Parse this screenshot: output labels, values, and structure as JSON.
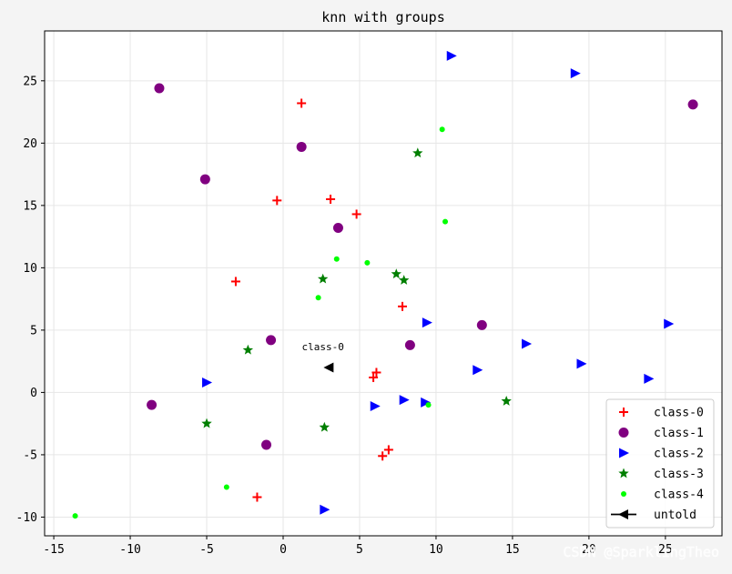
{
  "chart_data": {
    "type": "scatter",
    "title": "knn with groups",
    "xlabel": "",
    "ylabel": "",
    "xlim": [
      -15.6,
      28.7
    ],
    "ylim": [
      -11.5,
      29.0
    ],
    "xticks": [
      -15,
      -10,
      -5,
      0,
      5,
      10,
      15,
      20,
      25
    ],
    "yticks": [
      -10,
      -5,
      0,
      5,
      10,
      15,
      20,
      25
    ],
    "grid": true,
    "legend_position": "lower right",
    "series": [
      {
        "name": "class-0",
        "marker": "plus",
        "color": "#ff0000",
        "points": [
          [
            1.2,
            23.2
          ],
          [
            -0.4,
            15.4
          ],
          [
            3.1,
            15.5
          ],
          [
            4.8,
            14.3
          ],
          [
            -3.1,
            8.9
          ],
          [
            7.8,
            6.9
          ],
          [
            5.9,
            1.2
          ],
          [
            6.1,
            1.6
          ],
          [
            6.5,
            -5.1
          ],
          [
            6.9,
            -4.6
          ],
          [
            -1.7,
            -8.4
          ]
        ]
      },
      {
        "name": "class-1",
        "marker": "circle",
        "color": "#800080",
        "points": [
          [
            -8.1,
            24.4
          ],
          [
            1.2,
            19.7
          ],
          [
            -5.1,
            17.1
          ],
          [
            3.6,
            13.2
          ],
          [
            -0.8,
            4.2
          ],
          [
            8.3,
            3.8
          ],
          [
            13.0,
            5.4
          ],
          [
            26.8,
            23.1
          ],
          [
            -8.6,
            -1.0
          ],
          [
            -1.1,
            -4.2
          ]
        ]
      },
      {
        "name": "class-2",
        "marker": "triangle-right",
        "color": "#0000ff",
        "points": [
          [
            11.0,
            27.0
          ],
          [
            19.1,
            25.6
          ],
          [
            9.4,
            5.6
          ],
          [
            15.9,
            3.9
          ],
          [
            25.2,
            5.5
          ],
          [
            19.5,
            2.3
          ],
          [
            23.9,
            1.1
          ],
          [
            12.7,
            1.8
          ],
          [
            -5.0,
            0.8
          ],
          [
            6.0,
            -1.1
          ],
          [
            7.9,
            -0.6
          ],
          [
            9.3,
            -0.8
          ],
          [
            2.7,
            -9.4
          ]
        ]
      },
      {
        "name": "class-3",
        "marker": "star",
        "color": "#007f00",
        "points": [
          [
            8.8,
            19.2
          ],
          [
            2.6,
            9.1
          ],
          [
            7.4,
            9.5
          ],
          [
            7.9,
            9.0
          ],
          [
            -2.3,
            3.4
          ],
          [
            14.6,
            -0.7
          ],
          [
            -5.0,
            -2.5
          ],
          [
            2.7,
            -2.8
          ]
        ]
      },
      {
        "name": "class-4",
        "marker": "dot",
        "color": "#00ff00",
        "points": [
          [
            10.4,
            21.1
          ],
          [
            10.6,
            13.7
          ],
          [
            3.5,
            10.7
          ],
          [
            5.5,
            10.4
          ],
          [
            2.3,
            7.6
          ],
          [
            9.5,
            -1.0
          ],
          [
            -3.7,
            -7.6
          ],
          [
            -13.6,
            -9.9
          ]
        ]
      },
      {
        "name": "untold",
        "marker": "triangle-left",
        "color": "#000000",
        "points": [
          [
            3.0,
            2.0
          ]
        ]
      }
    ],
    "annotations": [
      {
        "text": "class-0",
        "x": 2.6,
        "y": 3.4
      }
    ]
  },
  "watermark": "CSDN @SparklingTheo"
}
